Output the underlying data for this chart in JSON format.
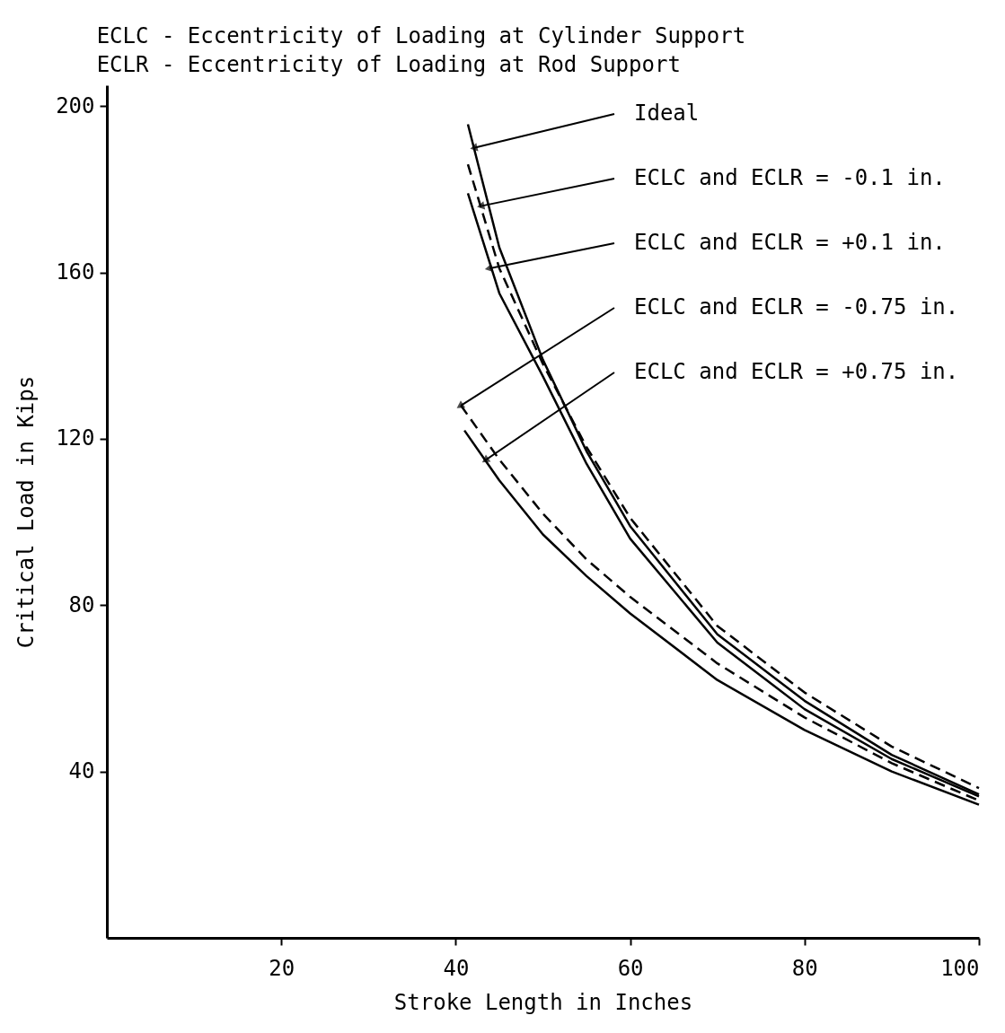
{
  "chart_data": {
    "type": "line",
    "title": "ECLC - Eccentricity of Loading at Cylinder Support",
    "subtitle": "ECLR - Eccentricity of Loading at Rod Support",
    "xlabel": "Stroke Length in Inches",
    "ylabel": "Critical Load in Kips",
    "xlim": [
      0,
      100
    ],
    "ylim": [
      0,
      205
    ],
    "xticks": [
      20,
      40,
      60,
      80,
      100
    ],
    "yticks": [
      40,
      80,
      120,
      160,
      200
    ],
    "grid": false,
    "marker": "none",
    "series": [
      {
        "color": "#000000",
        "line_style": "solid",
        "x": [
          41.4,
          45,
          50,
          55,
          60,
          70,
          80,
          90,
          100
        ],
        "values": [
          195.6,
          166,
          139,
          117,
          99,
          73,
          57,
          44,
          34.5
        ]
      },
      {
        "color": "#000000",
        "line_style": "dashed",
        "x": [
          41.4,
          45,
          50,
          55,
          60,
          70,
          80,
          90,
          100
        ],
        "values": [
          186,
          161,
          138,
          118,
          101,
          75,
          59,
          46,
          36
        ]
      },
      {
        "color": "#000000",
        "line_style": "solid",
        "x": [
          41.4,
          45,
          50,
          55,
          60,
          70,
          80,
          90,
          100
        ],
        "values": [
          179,
          155,
          135,
          114,
          96,
          71,
          55,
          43,
          34
        ]
      },
      {
        "color": "#000000",
        "line_style": "dashed",
        "x": [
          40.6,
          45,
          50,
          55,
          60,
          70,
          80,
          90,
          100
        ],
        "values": [
          128,
          115,
          102,
          91,
          82,
          66,
          53,
          42,
          33
        ]
      },
      {
        "color": "#000000",
        "line_style": "solid",
        "x": [
          41,
          45,
          50,
          55,
          60,
          70,
          80,
          90,
          100
        ],
        "values": [
          122,
          110,
          97,
          87,
          78,
          62,
          50,
          40,
          32
        ]
      }
    ],
    "annotations": [
      {
        "text": "Ideal",
        "x": 42.2,
        "y": 190
      },
      {
        "text": "ECLC and ECLR = -0.1 in.",
        "x": 43,
        "y": 176
      },
      {
        "text": "ECLC and ECLR = +0.1 in.",
        "x": 43.9,
        "y": 161
      },
      {
        "text": "ECLC and ECLR = -0.75 in.",
        "x": 40.6,
        "y": 128
      },
      {
        "text": "ECLC and ECLR = +0.75 in.",
        "x": 43.5,
        "y": 115
      }
    ]
  }
}
